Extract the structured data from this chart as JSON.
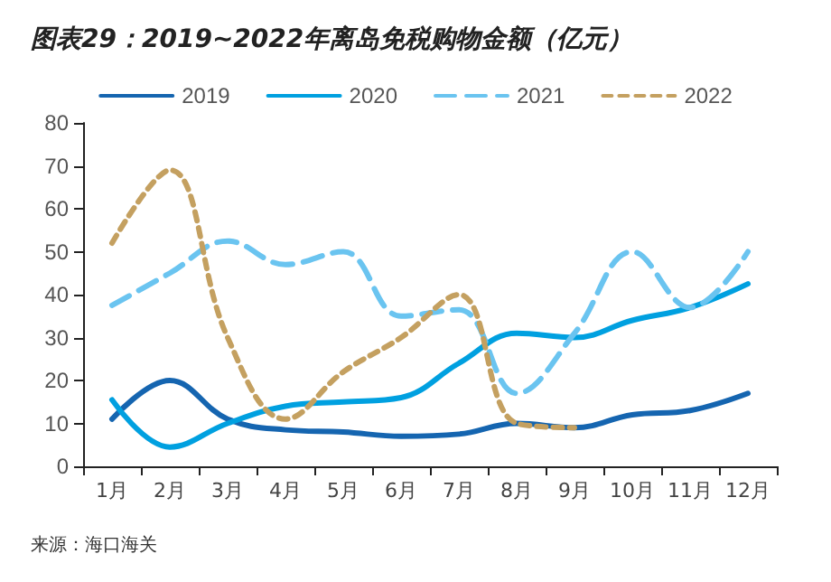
{
  "chart_data": {
    "type": "line",
    "title": "图表29：2019~2022年离岛免税购物金额（亿元）",
    "categories": [
      "1月",
      "2月",
      "3月",
      "4月",
      "5月",
      "6月",
      "7月",
      "8月",
      "9月",
      "10月",
      "11月",
      "12月"
    ],
    "series": [
      {
        "name": "2019",
        "color": "#1565b0",
        "line_style": "solid",
        "values": [
          11,
          20,
          11,
          8.5,
          8,
          7,
          7.5,
          10,
          9,
          12,
          13,
          17
        ]
      },
      {
        "name": "2020",
        "color": "#00a0e0",
        "line_style": "solid",
        "values": [
          15.5,
          4.5,
          10,
          14,
          15,
          16,
          24,
          31,
          30,
          34,
          37,
          42.5
        ]
      },
      {
        "name": "2021",
        "color": "#6ac4f0",
        "line_style": "dashed",
        "values": [
          37.5,
          45,
          52.5,
          47,
          50,
          35,
          36.5,
          17,
          31,
          50,
          37,
          50
        ]
      },
      {
        "name": "2022",
        "color": "#c4a060",
        "line_style": "dotted",
        "values": [
          52,
          69,
          30,
          11,
          22,
          30,
          40,
          10,
          9,
          null,
          null,
          null
        ]
      }
    ],
    "ylim": [
      0,
      80
    ],
    "yticks": [
      0,
      10,
      20,
      30,
      40,
      50,
      60,
      70,
      80
    ],
    "grid": false,
    "legend": "top",
    "marker": "none",
    "annotations": [
      "来源：海口海关"
    ]
  }
}
